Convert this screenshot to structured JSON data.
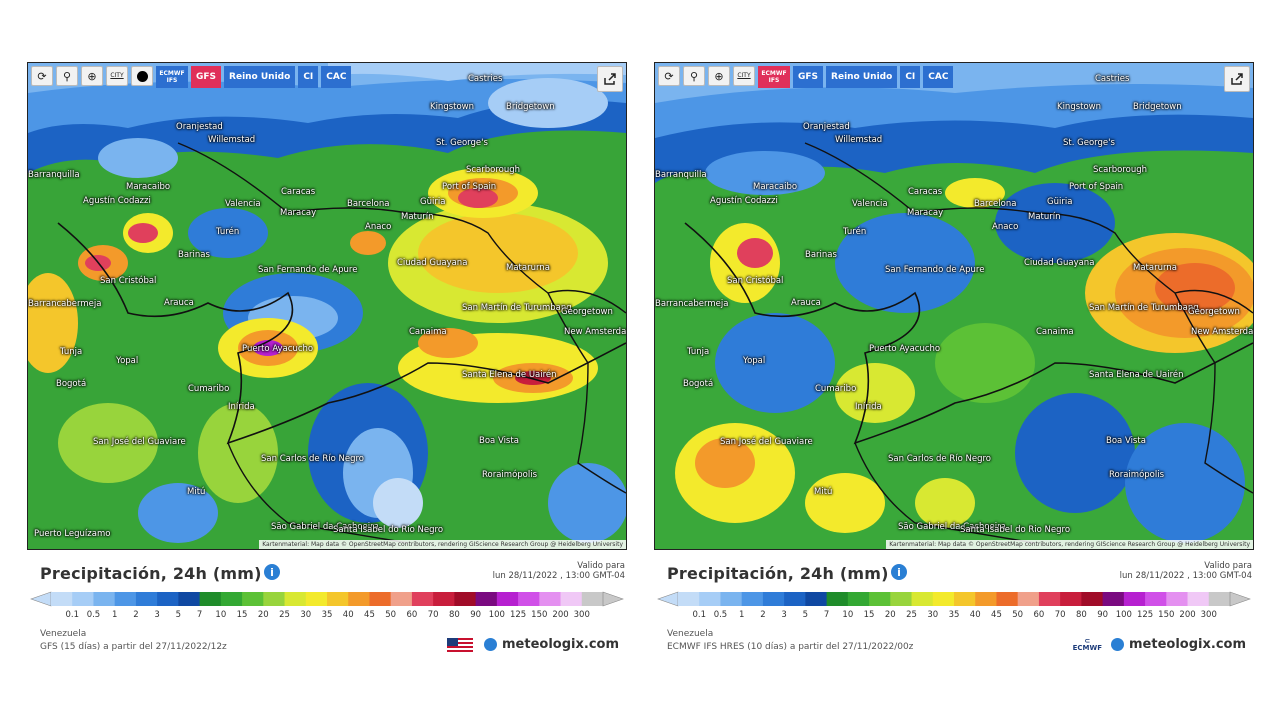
{
  "panels": [
    {
      "id": "gfs",
      "toolbar": {
        "buttons": [
          "⟳",
          "⚲",
          "⊕"
        ],
        "city_label": "CITY",
        "models": [
          {
            "label": "ECMWF IFS",
            "state": "blue"
          },
          {
            "label": "GFS",
            "state": "active"
          },
          {
            "label": "Reino Unido",
            "state": "blue"
          },
          {
            "label": "CI",
            "state": "blue"
          },
          {
            "label": "CAC",
            "state": "blue"
          }
        ]
      },
      "title": "Precipitación, 24h (mm)",
      "valid_label": "Valido para",
      "valid_time": "lun 28/11/2022 , 13:00 GMT-04",
      "region": "Venezuela",
      "source": "GFS (15 días) a partir del 27/11/2022/12z",
      "brand": "meteologix.com",
      "attribution": "Kartenmaterial: Map data © OpenStreetMap contributors, rendering GIScience Research Group @ Heidelberg University"
    },
    {
      "id": "ecmwf",
      "toolbar": {
        "buttons": [
          "⟳",
          "⚲",
          "⊕"
        ],
        "city_label": "CITY",
        "models": [
          {
            "label": "ECMWF IFS",
            "state": "active"
          },
          {
            "label": "GFS",
            "state": "blue"
          },
          {
            "label": "Reino Unido",
            "state": "blue"
          },
          {
            "label": "CI",
            "state": "blue"
          },
          {
            "label": "CAC",
            "state": "blue"
          }
        ]
      },
      "title": "Precipitación, 24h (mm)",
      "valid_label": "Valido para",
      "valid_time": "lun 28/11/2022 , 13:00 GMT-04",
      "region": "Venezuela",
      "source": "ECMWF IFS HRES (10 días) a partir del 27/11/2022/00z",
      "brand": "meteologix.com",
      "ecmwf_label": "ECMWF",
      "attribution": "Kartenmaterial: Map data © OpenStreetMap contributors, rendering GIScience Research Group @ Heidelberg University"
    }
  ],
  "places": [
    "Castries",
    "Kingstown",
    "Bridgetown",
    "Oranjestad",
    "Willemstad",
    "St. George's",
    "Scarborough",
    "Port of Spain",
    "Barranquilla",
    "Maracaibo",
    "Agustín Codazzi",
    "Valencia",
    "Caracas",
    "Maracay",
    "Barcelona",
    "Güiria",
    "Maturín",
    "Turén",
    "Anaco",
    "San Fernando de Apure",
    "Ciudad Guayana",
    "Barinas",
    "San Cristóbal",
    "Matarurna",
    "Barrancabermeja",
    "Arauca",
    "San Martín de Turumbang",
    "Georgetown",
    "New Amsterdam",
    "Canaima",
    "Tunja",
    "Yopal",
    "Puerto Ayacucho",
    "Bogotá",
    "Cumaribo",
    "Santa Elena de Uairén",
    "Inírida",
    "Boa Vista",
    "San José del Guaviare",
    "San Carlos de Río Negro",
    "Mitú",
    "Roraimópolis",
    "São Gabriel da Cachoeira",
    "Santa Isabel do Rio Negro",
    "Puerto Leguízamo"
  ],
  "legend": {
    "values": [
      "0.1",
      "0.5",
      "1",
      "2",
      "3",
      "5",
      "7",
      "10",
      "15",
      "20",
      "25",
      "30",
      "35",
      "40",
      "45",
      "50",
      "60",
      "70",
      "80",
      "90",
      "100",
      "125",
      "150",
      "200",
      "300"
    ],
    "colors": [
      "#c3dcf7",
      "#a6cdf6",
      "#7ab4ef",
      "#4d96e6",
      "#2f7cd8",
      "#1c63c4",
      "#0f48a2",
      "#1f8c2a",
      "#33a833",
      "#5cc136",
      "#98d43c",
      "#d8e832",
      "#f3ea2c",
      "#f4c62b",
      "#f39a2a",
      "#ec6c2a",
      "#f0a08a",
      "#e0405c",
      "#c81e3c",
      "#a00c28",
      "#7a0a80",
      "#b620d0",
      "#d050e8",
      "#e490f0",
      "#f0c8f6",
      "#c8c8c8"
    ]
  }
}
